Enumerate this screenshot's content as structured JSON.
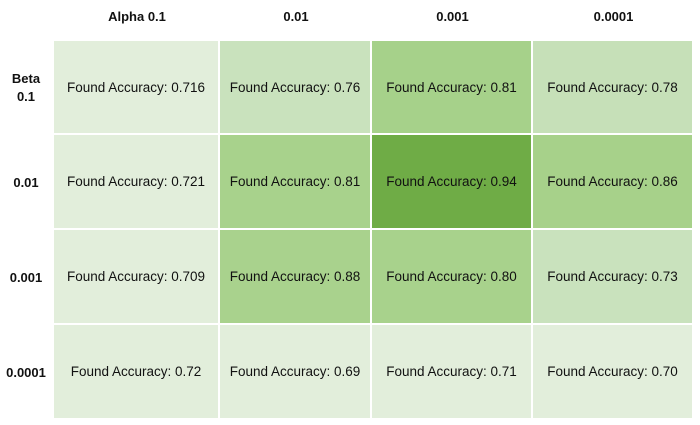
{
  "chart_data": {
    "type": "heatmap",
    "title": "",
    "x_header_label": "Alpha",
    "y_header_label": "Beta",
    "x_ticks": [
      "Alpha 0.1",
      "0.01",
      "0.001",
      "0.0001"
    ],
    "y_ticks": [
      "Beta\n0.1",
      "0.01",
      "0.001",
      "0.0001"
    ],
    "cell_prefix": "Found Accuracy: ",
    "values": [
      [
        "0.716",
        "0.76",
        "0.81",
        "0.78"
      ],
      [
        "0.721",
        "0.81",
        "0.94",
        "0.86"
      ],
      [
        "0.709",
        "0.88",
        "0.80",
        "0.73"
      ],
      [
        "0.72",
        "0.69",
        "0.71",
        "0.70"
      ]
    ],
    "colors": [
      [
        "#e2eedb",
        "#c9e2bd",
        "#a6d18a",
        "#c6e0b8"
      ],
      [
        "#e2eedb",
        "#a8d28c",
        "#6fac46",
        "#a7d18a"
      ],
      [
        "#e2eedb",
        "#a9d28d",
        "#a8d28c",
        "#c9e2bd"
      ],
      [
        "#e2eedb",
        "#e2eedb",
        "#e2eedb",
        "#e2eedb"
      ]
    ]
  }
}
